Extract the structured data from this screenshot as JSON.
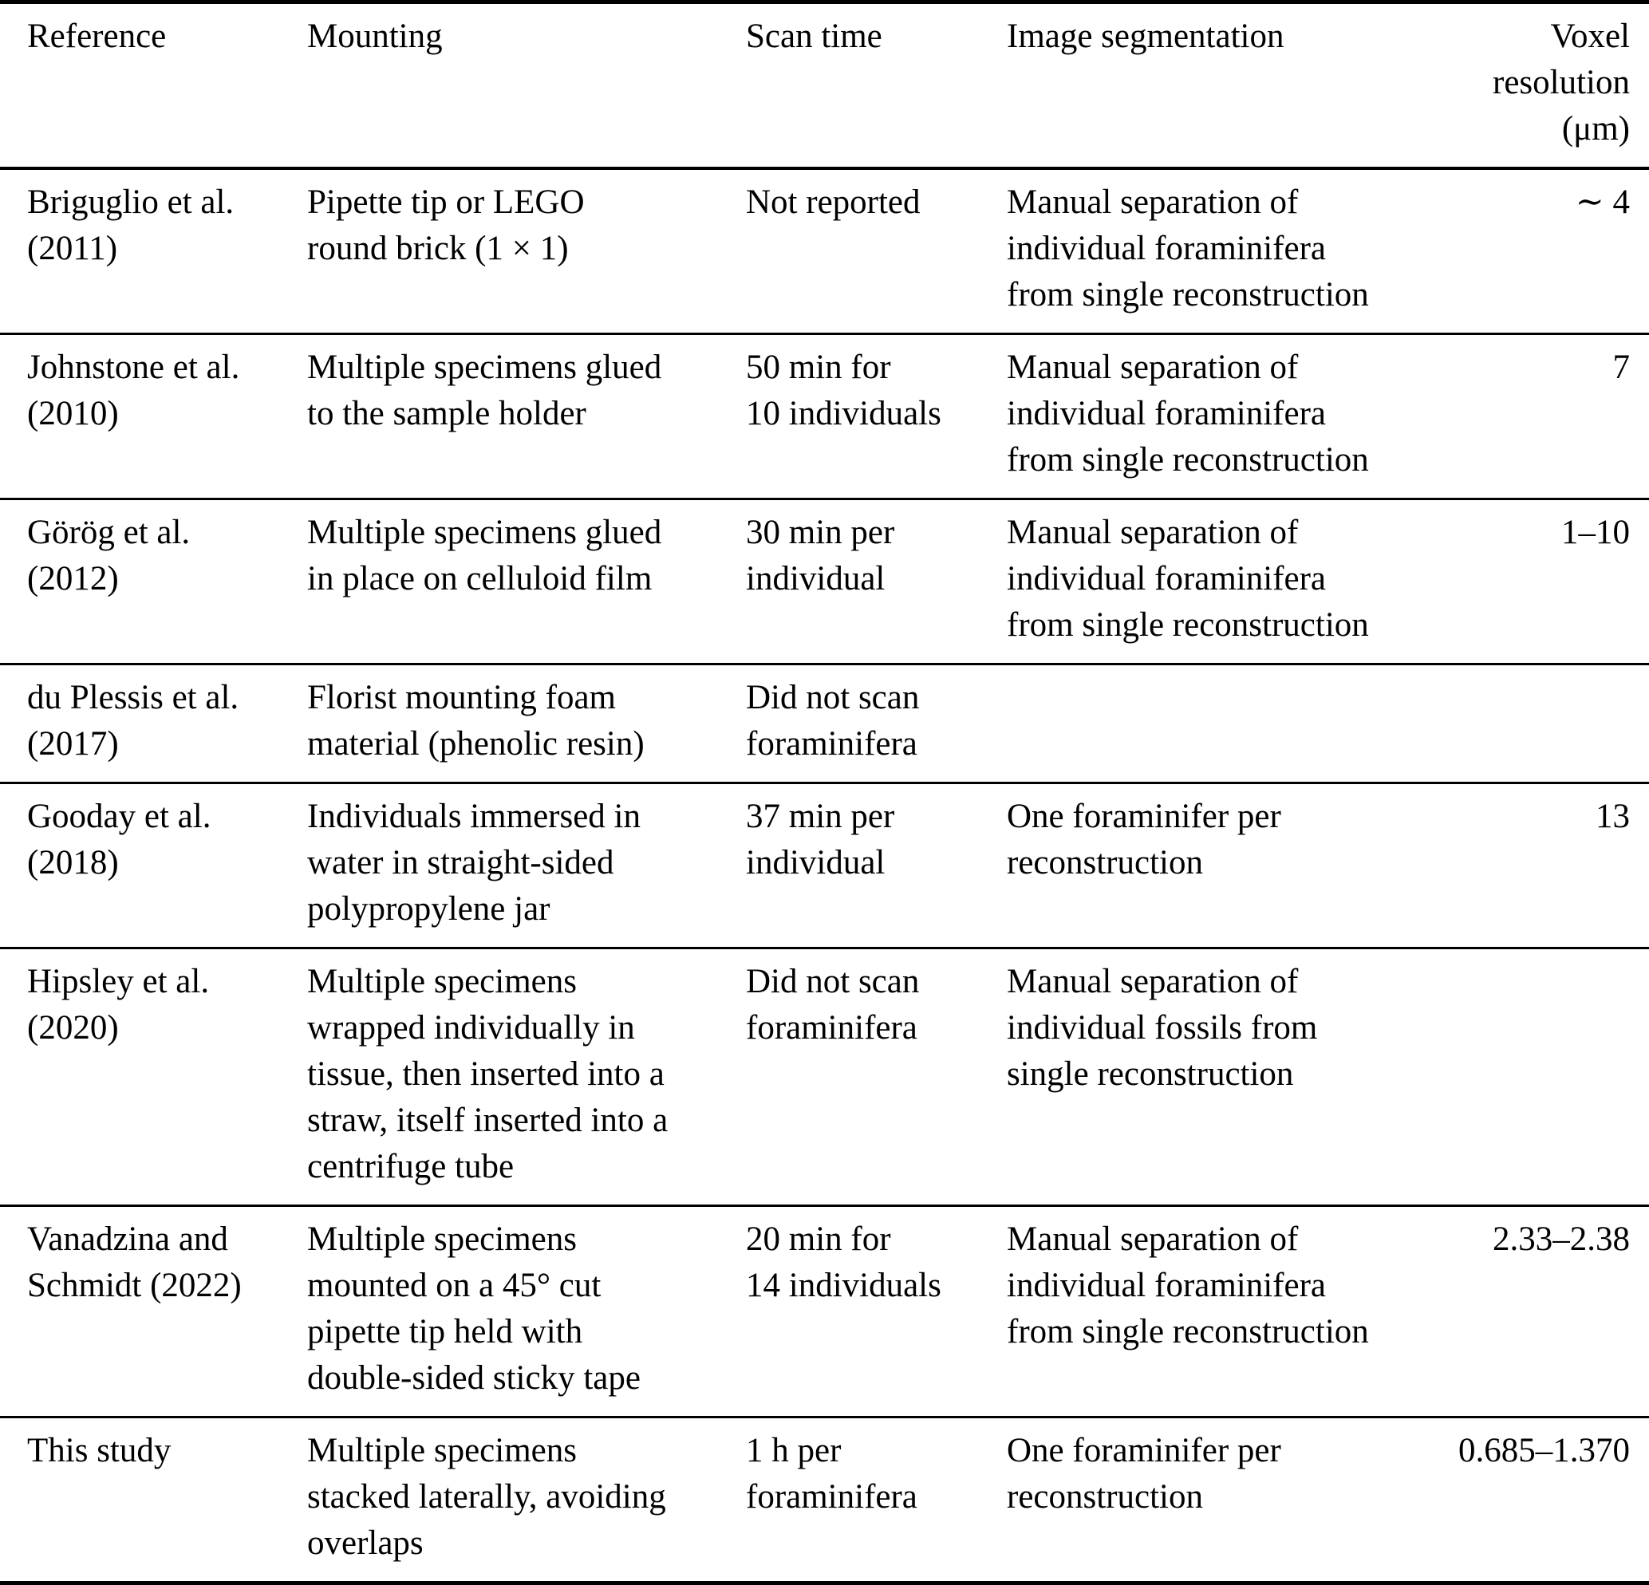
{
  "table": {
    "headers": {
      "reference": "Reference",
      "mounting": "Mounting",
      "scan_time": "Scan time",
      "image_segmentation": "Image segmentation",
      "voxel_resolution": "Voxel\nresolution\n(μm)"
    },
    "rows": [
      {
        "reference": "Briguglio et al.\n(2011)",
        "mounting": "Pipette tip or LEGO\nround brick (1 × 1)",
        "scan_time": "Not reported",
        "image_segmentation": "Manual separation of\nindividual foraminifera\nfrom single reconstruction",
        "voxel_resolution": "∼ 4"
      },
      {
        "reference": "Johnstone et al.\n(2010)",
        "mounting": "Multiple specimens glued\nto the sample holder",
        "scan_time": "50 min for\n10 individuals",
        "image_segmentation": "Manual separation of\nindividual foraminifera\nfrom single reconstruction",
        "voxel_resolution": "7"
      },
      {
        "reference": "Görög et al.\n(2012)",
        "mounting": "Multiple specimens glued\nin place on celluloid film",
        "scan_time": "30 min per\nindividual",
        "image_segmentation": "Manual separation of\nindividual foraminifera\nfrom single reconstruction",
        "voxel_resolution": "1–10"
      },
      {
        "reference": "du Plessis et al.\n(2017)",
        "mounting": "Florist mounting foam\nmaterial (phenolic resin)",
        "scan_time": "Did not scan\nforaminifera",
        "image_segmentation": "",
        "voxel_resolution": ""
      },
      {
        "reference": "Gooday et al.\n(2018)",
        "mounting": "Individuals immersed in\nwater in straight-sided\npolypropylene jar",
        "scan_time": "37 min per\nindividual",
        "image_segmentation": "One foraminifer per\nreconstruction",
        "voxel_resolution": "13"
      },
      {
        "reference": "Hipsley et al.\n(2020)",
        "mounting": "Multiple specimens\nwrapped individually in\ntissue, then inserted into a\nstraw, itself inserted into a\ncentrifuge tube",
        "scan_time": "Did not scan\nforaminifera",
        "image_segmentation": "Manual separation of\nindividual fossils from\nsingle reconstruction",
        "voxel_resolution": ""
      },
      {
        "reference": "Vanadzina and\nSchmidt (2022)",
        "mounting": "Multiple specimens\nmounted on a 45° cut\npipette tip held with\ndouble-sided sticky tape",
        "scan_time": "20 min for\n14 individuals",
        "image_segmentation": "Manual separation of\nindividual foraminifera\nfrom single reconstruction",
        "voxel_resolution": "2.33–2.38"
      },
      {
        "reference": "This study",
        "mounting": "Multiple specimens\nstacked laterally, avoiding\noverlaps",
        "scan_time": "1 h per\nforaminifera",
        "image_segmentation": "One foraminifer per\nreconstruction",
        "voxel_resolution": "0.685–1.370"
      }
    ]
  }
}
